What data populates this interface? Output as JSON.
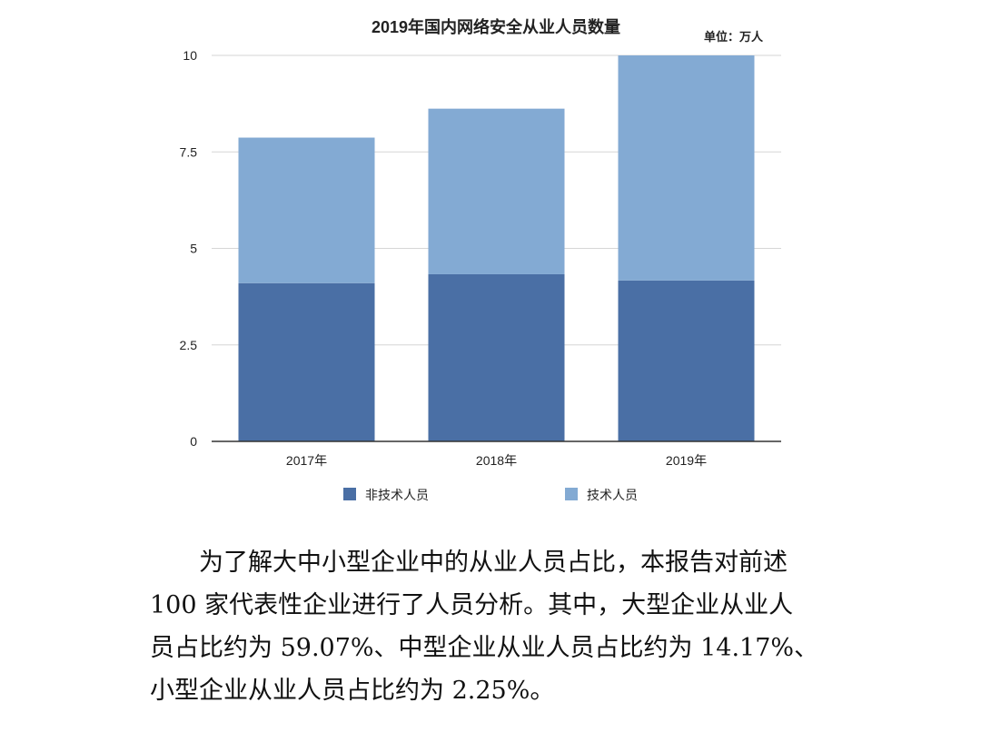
{
  "chart_data": {
    "type": "bar",
    "stacked": true,
    "title": "2019年国内网络安全从业人员数量",
    "unit_label": "单位：万人",
    "categories": [
      "2017年",
      "2018年",
      "2019年"
    ],
    "series": [
      {
        "name": "非技术人员",
        "values": [
          4.1,
          4.33,
          4.17
        ],
        "color": "#4a6fa5"
      },
      {
        "name": "技术人员",
        "values": [
          3.77,
          4.29,
          5.83
        ],
        "color": "#83aad3"
      }
    ],
    "ylim": [
      0,
      10
    ],
    "yticks": [
      0,
      2.5,
      5,
      7.5,
      10
    ],
    "ytick_labels": [
      "0",
      "2.5",
      "5",
      "7.5",
      "10"
    ],
    "grid": true,
    "legend_position": "bottom"
  },
  "paragraph": {
    "lines": [
      "为了解大中小型企业中的从业人员占比，本报告对前述",
      "100 家代表性企业进行了人员分析。其中，大型企业从业人",
      "员占比约为 59.07%、中型企业从业人员占比约为 14.17%、",
      "小型企业从业人员占比约为 2.25%。"
    ]
  }
}
